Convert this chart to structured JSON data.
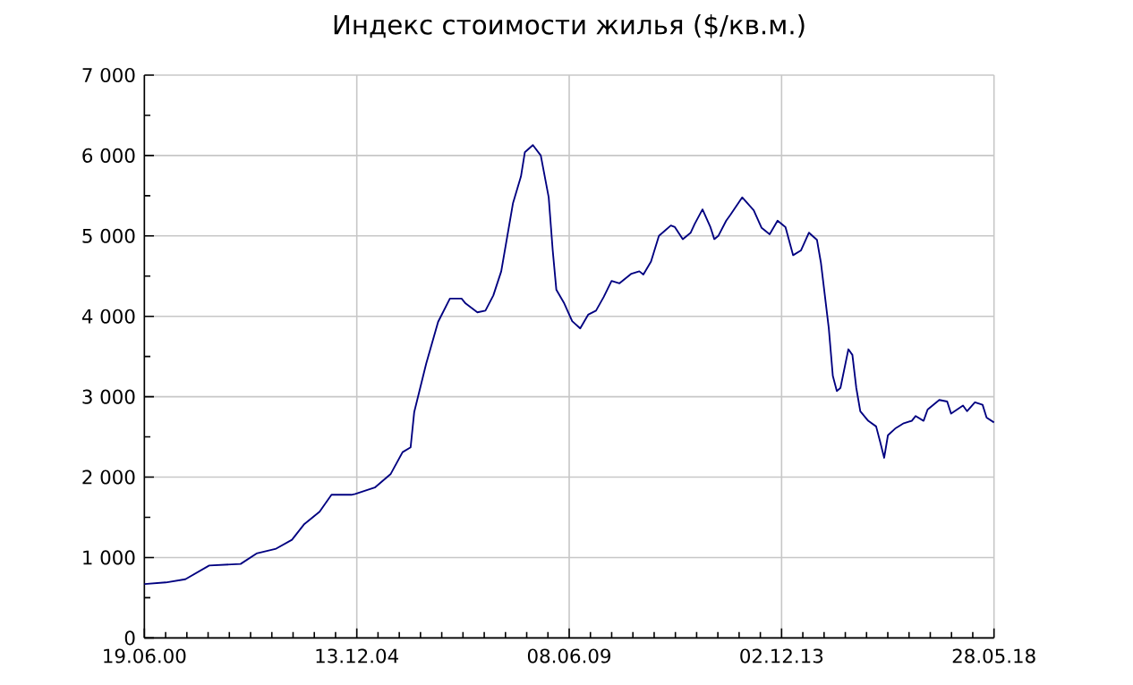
{
  "chart_data": {
    "type": "line",
    "title": "Индекс стоимости жилья ($/кв.м.)",
    "x": [
      "2000-06-19",
      "2000-12",
      "2001-05",
      "2001-11",
      "2002-07",
      "2002-11",
      "2003-04",
      "2003-08",
      "2003-11",
      "2004-03",
      "2004-06",
      "2004-11",
      "2004-12",
      "2005-05",
      "2005-09",
      "2005-12",
      "2006-02",
      "2006-03",
      "2006-06",
      "2006-09",
      "2006-12",
      "2007-03",
      "2007-04",
      "2007-07",
      "2007-09",
      "2007-11",
      "2008-01",
      "2008-04",
      "2008-06",
      "2008-07",
      "2008-09",
      "2008-11",
      "2009-01",
      "2009-02",
      "2009-03",
      "2009-05",
      "2009-07",
      "2009-09",
      "2009-11",
      "2010-01",
      "2010-03",
      "2010-05",
      "2010-07",
      "2010-10",
      "2010-12",
      "2011-01",
      "2011-03",
      "2011-05",
      "2011-08",
      "2011-09",
      "2011-11",
      "2012-01",
      "2012-02",
      "2012-04",
      "2012-06",
      "2012-07",
      "2012-08",
      "2012-10",
      "2012-11",
      "2013-02",
      "2013-05",
      "2013-07",
      "2013-09",
      "2013-11",
      "2014-01",
      "2014-03",
      "2014-05",
      "2014-07",
      "2014-09",
      "2014-10",
      "2014-12",
      "2015-01",
      "2015-02",
      "2015-03",
      "2015-05",
      "2015-06",
      "2015-07",
      "2015-08",
      "2015-10",
      "2015-12",
      "2016-01",
      "2016-02",
      "2016-03",
      "2016-05",
      "2016-07",
      "2016-09",
      "2016-10",
      "2016-12",
      "2017-01",
      "2017-04",
      "2017-06",
      "2017-07",
      "2017-10",
      "2017-11",
      "2018-01",
      "2018-03",
      "2018-04",
      "2018-05-28"
    ],
    "series": [
      {
        "color": "#000080",
        "values": [
          670,
          690,
          730,
          900,
          920,
          1050,
          1110,
          1220,
          1410,
          1570,
          1780,
          1780,
          1790,
          1870,
          2040,
          2310,
          2370,
          2810,
          3410,
          3930,
          4220,
          4220,
          4160,
          4050,
          4070,
          4260,
          4560,
          5410,
          5740,
          6040,
          6130,
          6000,
          5480,
          4820,
          4330,
          4160,
          3940,
          3850,
          4020,
          4070,
          4240,
          4440,
          4410,
          4530,
          4560,
          4520,
          4680,
          5000,
          5130,
          5110,
          4960,
          5040,
          5150,
          5330,
          5110,
          4960,
          5000,
          5190,
          5260,
          5480,
          5320,
          5100,
          5020,
          5190,
          5110,
          4760,
          4820,
          5040,
          4950,
          4670,
          3850,
          3260,
          3070,
          3110,
          3590,
          3520,
          3110,
          2820,
          2700,
          2630,
          2440,
          2240,
          2520,
          2610,
          2670,
          2700,
          2760,
          2700,
          2840,
          2960,
          2940,
          2790,
          2890,
          2820,
          2930,
          2900,
          2740,
          2680
        ]
      }
    ],
    "xlim": [
      "2000-06-19",
      "2018-05-28"
    ],
    "xticks": [
      {
        "value": "2000-06-19",
        "label": "19.06.00"
      },
      {
        "value": "2004-12-13",
        "label": "13.12.04"
      },
      {
        "value": "2009-06-08",
        "label": "08.06.09"
      },
      {
        "value": "2013-12-02",
        "label": "02.12.13"
      },
      {
        "value": "2018-05-28",
        "label": "28.05.18"
      }
    ],
    "ylim": [
      0,
      7000
    ],
    "yticks": [
      0,
      {
        "value": 1000,
        "label": "1 000"
      },
      {
        "value": 2000,
        "label": "2 000"
      },
      {
        "value": 3000,
        "label": "3 000"
      },
      {
        "value": 4000,
        "label": "4 000"
      },
      {
        "value": 5000,
        "label": "5 000"
      },
      {
        "value": 6000,
        "label": "6 000"
      },
      {
        "value": 7000,
        "label": "7 000"
      }
    ],
    "grid": true,
    "legend": false,
    "marker": "none",
    "line_style": "solid"
  }
}
